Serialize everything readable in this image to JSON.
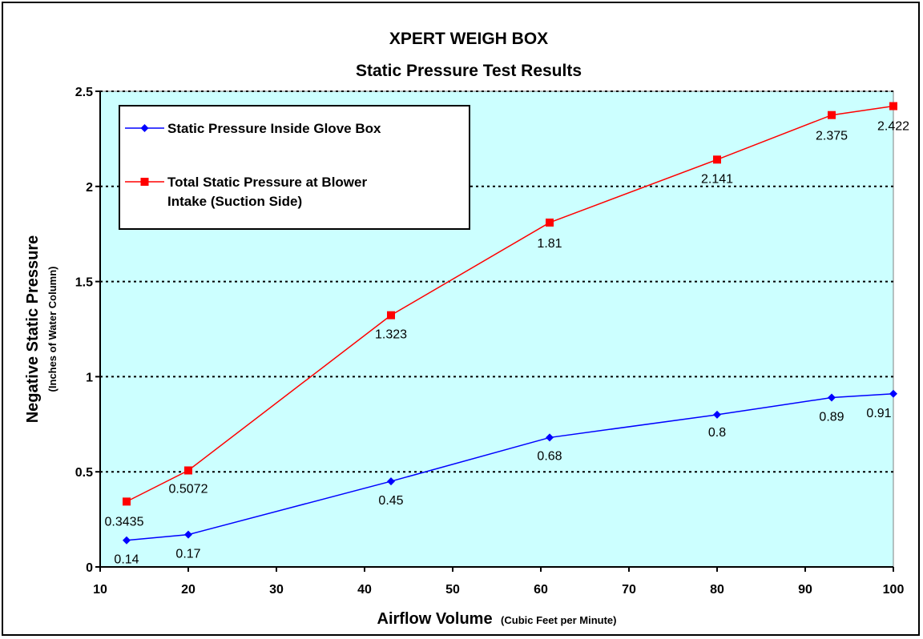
{
  "chart_data": {
    "type": "line",
    "title": "XPERT WEIGH  BOX",
    "subtitle": "Static Pressure Test Results",
    "xlabel": "Airflow Volume",
    "xlabel_sub": "(Cubic Feet per Minute)",
    "ylabel": "Negative Static Pressure",
    "ylabel_sub": "(Inches of Water Column)",
    "xlim": [
      10,
      100
    ],
    "ylim": [
      0,
      2.5
    ],
    "xticks": [
      "10",
      "20",
      "30",
      "40",
      "50",
      "60",
      "70",
      "80",
      "90",
      "100"
    ],
    "yticks": [
      "0",
      "0.5",
      "1",
      "1.5",
      "2",
      "2.5"
    ],
    "grid": "horizontal dotted",
    "legend_position": "top-left",
    "plot_background": "#ccffff",
    "series": [
      {
        "name": "Static Pressure Inside Glove Box",
        "color": "#0000ff",
        "marker": "diamond",
        "x": [
          13,
          20,
          43,
          61,
          80,
          93,
          100
        ],
        "y": [
          0.14,
          0.17,
          0.45,
          0.68,
          0.8,
          0.89,
          0.91
        ],
        "labels": [
          "0.14",
          "0.17",
          "0.45",
          "0.68",
          "0.8",
          "0.89",
          "0.91"
        ]
      },
      {
        "name": "Total Static Pressure at Blower Intake (Suction Side)",
        "name_lines": [
          "Total Static Pressure at Blower",
          "Intake (Suction Side)"
        ],
        "color": "#ff0000",
        "marker": "square",
        "x": [
          13,
          20,
          43,
          61,
          80,
          93,
          100
        ],
        "y": [
          0.3435,
          0.5072,
          1.323,
          1.81,
          2.141,
          2.375,
          2.422
        ],
        "labels": [
          "0.3435",
          "0.5072",
          "1.323",
          "1.81",
          "2.141",
          "2.375",
          "2.422"
        ]
      }
    ]
  }
}
